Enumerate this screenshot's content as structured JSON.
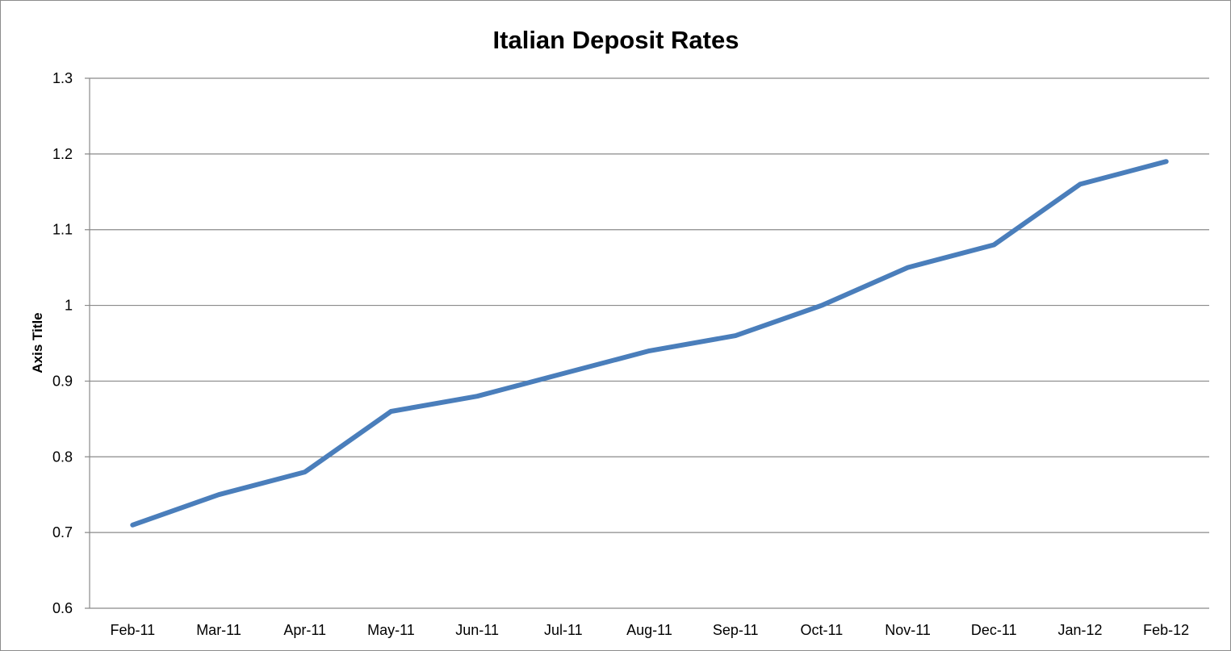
{
  "chart_data": {
    "type": "line",
    "title": "Italian Deposit Rates",
    "xlabel": "",
    "ylabel": "Axis Title",
    "categories": [
      "Feb-11",
      "Mar-11",
      "Apr-11",
      "May-11",
      "Jun-11",
      "Jul-11",
      "Aug-11",
      "Sep-11",
      "Oct-11",
      "Nov-11",
      "Dec-11",
      "Jan-12",
      "Feb-12"
    ],
    "series": [
      {
        "values": [
          0.71,
          0.75,
          0.78,
          0.86,
          0.88,
          0.91,
          0.94,
          0.96,
          1.0,
          1.05,
          1.08,
          1.16,
          1.19
        ],
        "color": "#4a7ebb"
      }
    ],
    "ylim": [
      0.6,
      1.3
    ],
    "yticks": [
      "0.6",
      "0.7",
      "0.8",
      "0.9",
      "1",
      "1.1",
      "1.2",
      "1.3"
    ],
    "grid": true,
    "legend": "none"
  }
}
